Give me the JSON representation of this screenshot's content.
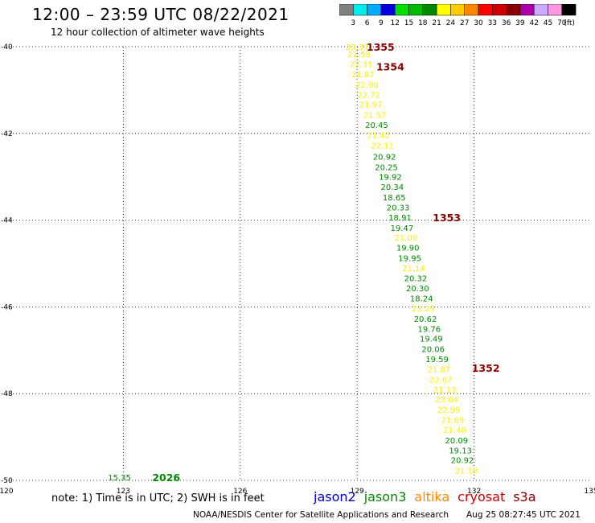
{
  "header": {
    "title": "12:00 – 23:59 UTC 08/22/2021",
    "subtitle": "12 hour collection of altimeter wave heights"
  },
  "colorbar": {
    "unit": "(ft)",
    "bins": [
      {
        "label": "3",
        "color": "#808080"
      },
      {
        "label": "6",
        "color": "#00eeee"
      },
      {
        "label": "9",
        "color": "#00aaff"
      },
      {
        "label": "12",
        "color": "#0000dd"
      },
      {
        "label": "15",
        "color": "#00dd00"
      },
      {
        "label": "18",
        "color": "#00bb00"
      },
      {
        "label": "21",
        "color": "#008800"
      },
      {
        "label": "24",
        "color": "#ffff00"
      },
      {
        "label": "27",
        "color": "#ffcc00"
      },
      {
        "label": "30",
        "color": "#ff8800"
      },
      {
        "label": "33",
        "color": "#ff0000"
      },
      {
        "label": "36",
        "color": "#cc0000"
      },
      {
        "label": "39",
        "color": "#880000"
      },
      {
        "label": "42",
        "color": "#aa00aa"
      },
      {
        "label": "45",
        "color": "#ccaaff"
      },
      {
        "label": "70",
        "color": "#ff99dd"
      },
      {
        "label": "",
        "color": "#000000"
      }
    ]
  },
  "chart_data": {
    "type": "scatter",
    "xlim": [
      120,
      135
    ],
    "ylim": [
      -50,
      -40
    ],
    "x_ticks": [
      "120",
      "123",
      "126",
      "129",
      "132",
      "135"
    ],
    "y_ticks": [
      "-40",
      "-42",
      "-44",
      "-46",
      "-48",
      "-50"
    ],
    "grid": true,
    "colors": {
      "low": "#008800",
      "high": "#ffee00",
      "label": "#880000",
      "label_green": "#008800"
    },
    "points": [
      {
        "lon": 129.0,
        "lat": -40.0,
        "v": "23.37",
        "c": "high"
      },
      {
        "lon": 129.05,
        "lat": -40.17,
        "v": "22.58",
        "c": "high"
      },
      {
        "lon": 129.1,
        "lat": -40.4,
        "v": "22.31",
        "c": "high"
      },
      {
        "lon": 129.15,
        "lat": -40.63,
        "v": "21.87",
        "c": "high"
      },
      {
        "lon": 129.25,
        "lat": -40.87,
        "v": "22.90",
        "c": "high"
      },
      {
        "lon": 129.3,
        "lat": -41.1,
        "v": "22.72",
        "c": "high"
      },
      {
        "lon": 129.35,
        "lat": -41.33,
        "v": "21.97",
        "c": "high"
      },
      {
        "lon": 129.45,
        "lat": -41.57,
        "v": "21.57",
        "c": "high"
      },
      {
        "lon": 129.5,
        "lat": -41.8,
        "v": "20.45",
        "c": "low"
      },
      {
        "lon": 129.55,
        "lat": -42.03,
        "v": "21.42",
        "c": "high"
      },
      {
        "lon": 129.65,
        "lat": -42.27,
        "v": "22.11",
        "c": "high"
      },
      {
        "lon": 129.7,
        "lat": -42.53,
        "v": "20.92",
        "c": "low"
      },
      {
        "lon": 129.75,
        "lat": -42.77,
        "v": "20.25",
        "c": "low"
      },
      {
        "lon": 129.85,
        "lat": -43.0,
        "v": "19.92",
        "c": "low"
      },
      {
        "lon": 129.9,
        "lat": -43.23,
        "v": "20.34",
        "c": "low"
      },
      {
        "lon": 129.95,
        "lat": -43.47,
        "v": "18.65",
        "c": "low"
      },
      {
        "lon": 130.05,
        "lat": -43.7,
        "v": "20.33",
        "c": "low"
      },
      {
        "lon": 130.1,
        "lat": -43.93,
        "v": "18.91",
        "c": "low"
      },
      {
        "lon": 130.15,
        "lat": -44.17,
        "v": "19.47",
        "c": "low"
      },
      {
        "lon": 130.25,
        "lat": -44.4,
        "v": "21.09",
        "c": "high"
      },
      {
        "lon": 130.3,
        "lat": -44.63,
        "v": "19.90",
        "c": "low"
      },
      {
        "lon": 130.35,
        "lat": -44.87,
        "v": "19.95",
        "c": "low"
      },
      {
        "lon": 130.45,
        "lat": -45.1,
        "v": "21.14",
        "c": "high"
      },
      {
        "lon": 130.5,
        "lat": -45.33,
        "v": "20.32",
        "c": "low"
      },
      {
        "lon": 130.55,
        "lat": -45.57,
        "v": "20.30",
        "c": "low"
      },
      {
        "lon": 130.65,
        "lat": -45.8,
        "v": "18.24",
        "c": "low"
      },
      {
        "lon": 130.7,
        "lat": -46.03,
        "v": "21.09",
        "c": "high"
      },
      {
        "lon": 130.75,
        "lat": -46.27,
        "v": "20.62",
        "c": "low"
      },
      {
        "lon": 130.85,
        "lat": -46.5,
        "v": "19.76",
        "c": "low"
      },
      {
        "lon": 130.9,
        "lat": -46.73,
        "v": "19.49",
        "c": "low"
      },
      {
        "lon": 130.95,
        "lat": -46.97,
        "v": "20.06",
        "c": "low"
      },
      {
        "lon": 131.05,
        "lat": -47.2,
        "v": "19.59",
        "c": "low"
      },
      {
        "lon": 131.1,
        "lat": -47.43,
        "v": "21.87",
        "c": "high"
      },
      {
        "lon": 131.15,
        "lat": -47.67,
        "v": "22.67",
        "c": "high"
      },
      {
        "lon": 131.25,
        "lat": -47.9,
        "v": "21.13",
        "c": "high"
      },
      {
        "lon": 131.3,
        "lat": -48.13,
        "v": "22.64",
        "c": "high"
      },
      {
        "lon": 131.35,
        "lat": -48.37,
        "v": "22.99",
        "c": "high"
      },
      {
        "lon": 131.45,
        "lat": -48.6,
        "v": "21.69",
        "c": "high"
      },
      {
        "lon": 131.5,
        "lat": -48.83,
        "v": "21.40",
        "c": "high"
      },
      {
        "lon": 131.55,
        "lat": -49.07,
        "v": "20.09",
        "c": "low"
      },
      {
        "lon": 131.65,
        "lat": -49.3,
        "v": "19.13",
        "c": "low"
      },
      {
        "lon": 131.7,
        "lat": -49.53,
        "v": "20.92",
        "c": "low"
      },
      {
        "lon": 131.8,
        "lat": -49.77,
        "v": "21.18",
        "c": "high"
      },
      {
        "lon": 122.9,
        "lat": -49.93,
        "v": "15.35",
        "c": "low"
      }
    ],
    "pass_labels": [
      {
        "lon": 129.6,
        "lat": -40.0,
        "text": "1355",
        "c": "label"
      },
      {
        "lon": 129.85,
        "lat": -40.45,
        "text": "1354",
        "c": "label"
      },
      {
        "lon": 131.3,
        "lat": -43.93,
        "text": "1353",
        "c": "label"
      },
      {
        "lon": 132.3,
        "lat": -47.4,
        "text": "1352",
        "c": "label"
      },
      {
        "lon": 124.1,
        "lat": -49.93,
        "text": "2026",
        "c": "label_green"
      }
    ]
  },
  "footer": {
    "note": "note: 1) Time is in UTC; 2) SWH is in feet",
    "satellites": [
      {
        "name": "jason2",
        "color": "#0000cc"
      },
      {
        "name": "jason3",
        "color": "#008800"
      },
      {
        "name": "altika",
        "color": "#ff8800"
      },
      {
        "name": "cryosat",
        "color": "#cc0000"
      },
      {
        "name": "s3a",
        "color": "#880000"
      }
    ],
    "credit": "NOAA/NESDIS Center for Satellite Applications and Research",
    "timestamp": "Aug 25 08:27:45 UTC 2021"
  }
}
